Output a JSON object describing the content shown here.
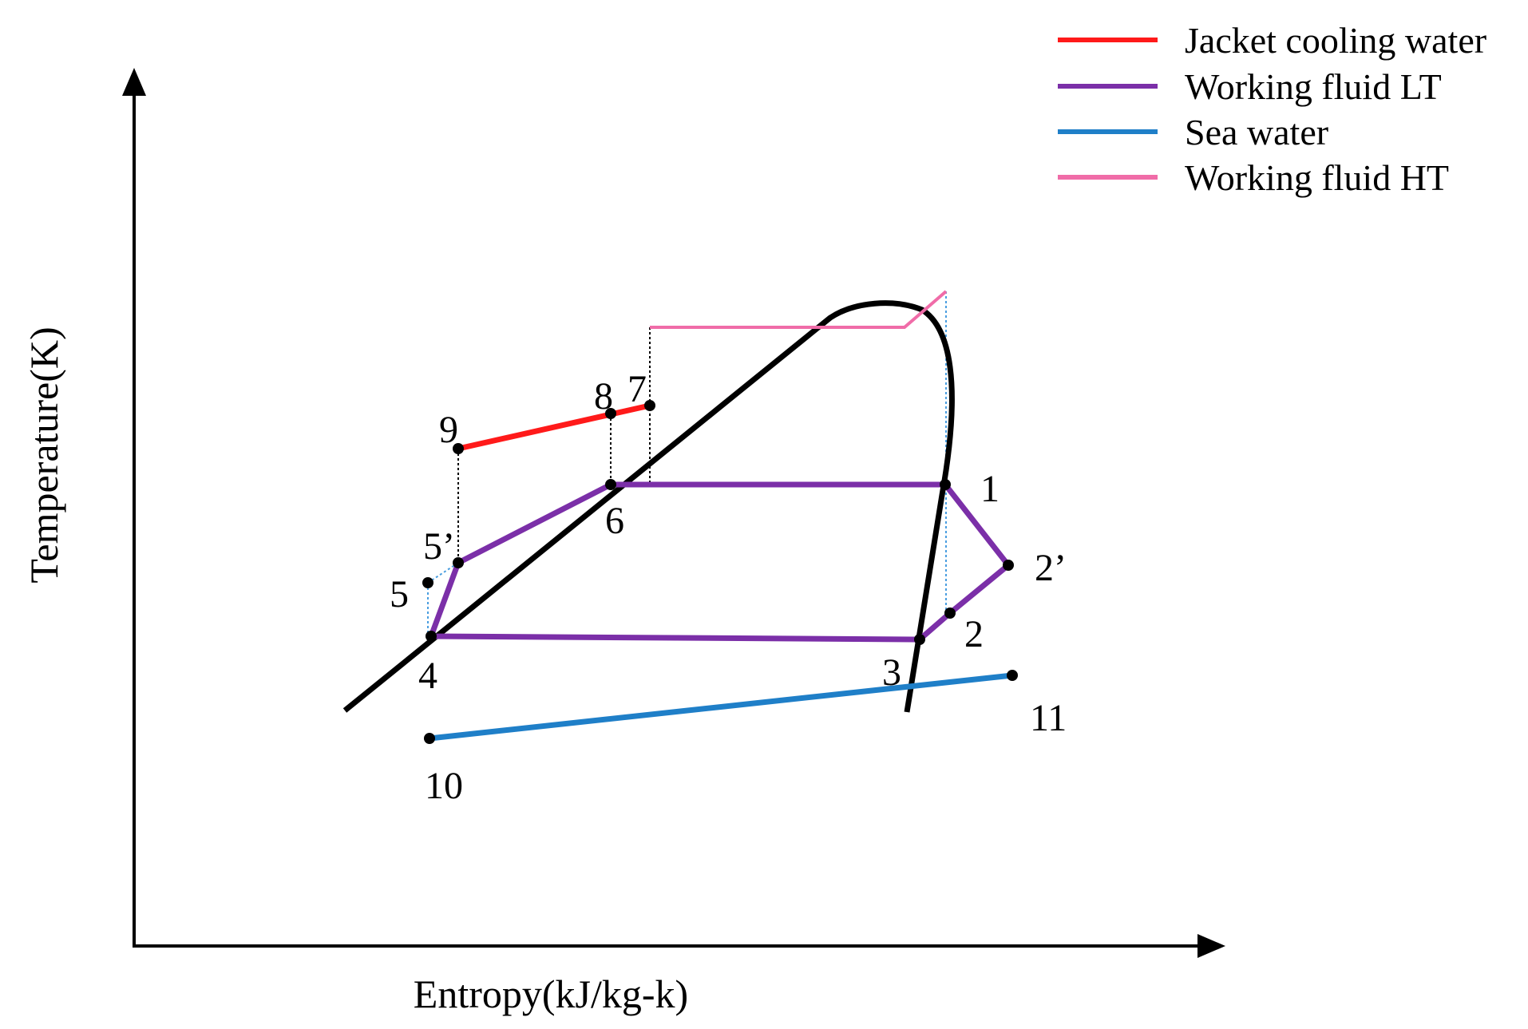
{
  "diagram": {
    "type": "T-s diagram (temperature-entropy)",
    "axes": {
      "x_label": "Entropy(kJ/kg-k)",
      "y_label": "Temperature(K)"
    },
    "legend": [
      {
        "label": "Jacket cooling water",
        "color": "#ff1a1a"
      },
      {
        "label": "Working fluid LT",
        "color": "#7b2fa8"
      },
      {
        "label": "Sea water",
        "color": "#1f7fc8"
      },
      {
        "label": "Working fluid HT",
        "color": "#f06ca8"
      }
    ],
    "state_points": [
      {
        "id": "1",
        "label": "1"
      },
      {
        "id": "2",
        "label": "2"
      },
      {
        "id": "2p",
        "label": "2’"
      },
      {
        "id": "3",
        "label": "3"
      },
      {
        "id": "4",
        "label": "4"
      },
      {
        "id": "5",
        "label": "5"
      },
      {
        "id": "5p",
        "label": "5’"
      },
      {
        "id": "6",
        "label": "6"
      },
      {
        "id": "7",
        "label": "7"
      },
      {
        "id": "8",
        "label": "8"
      },
      {
        "id": "9",
        "label": "9"
      },
      {
        "id": "10",
        "label": "10"
      },
      {
        "id": "11",
        "label": "11"
      }
    ],
    "colors": {
      "saturation_dome": "#000000",
      "guide_black": "#000000",
      "guide_blue": "#4a9ee0"
    }
  }
}
